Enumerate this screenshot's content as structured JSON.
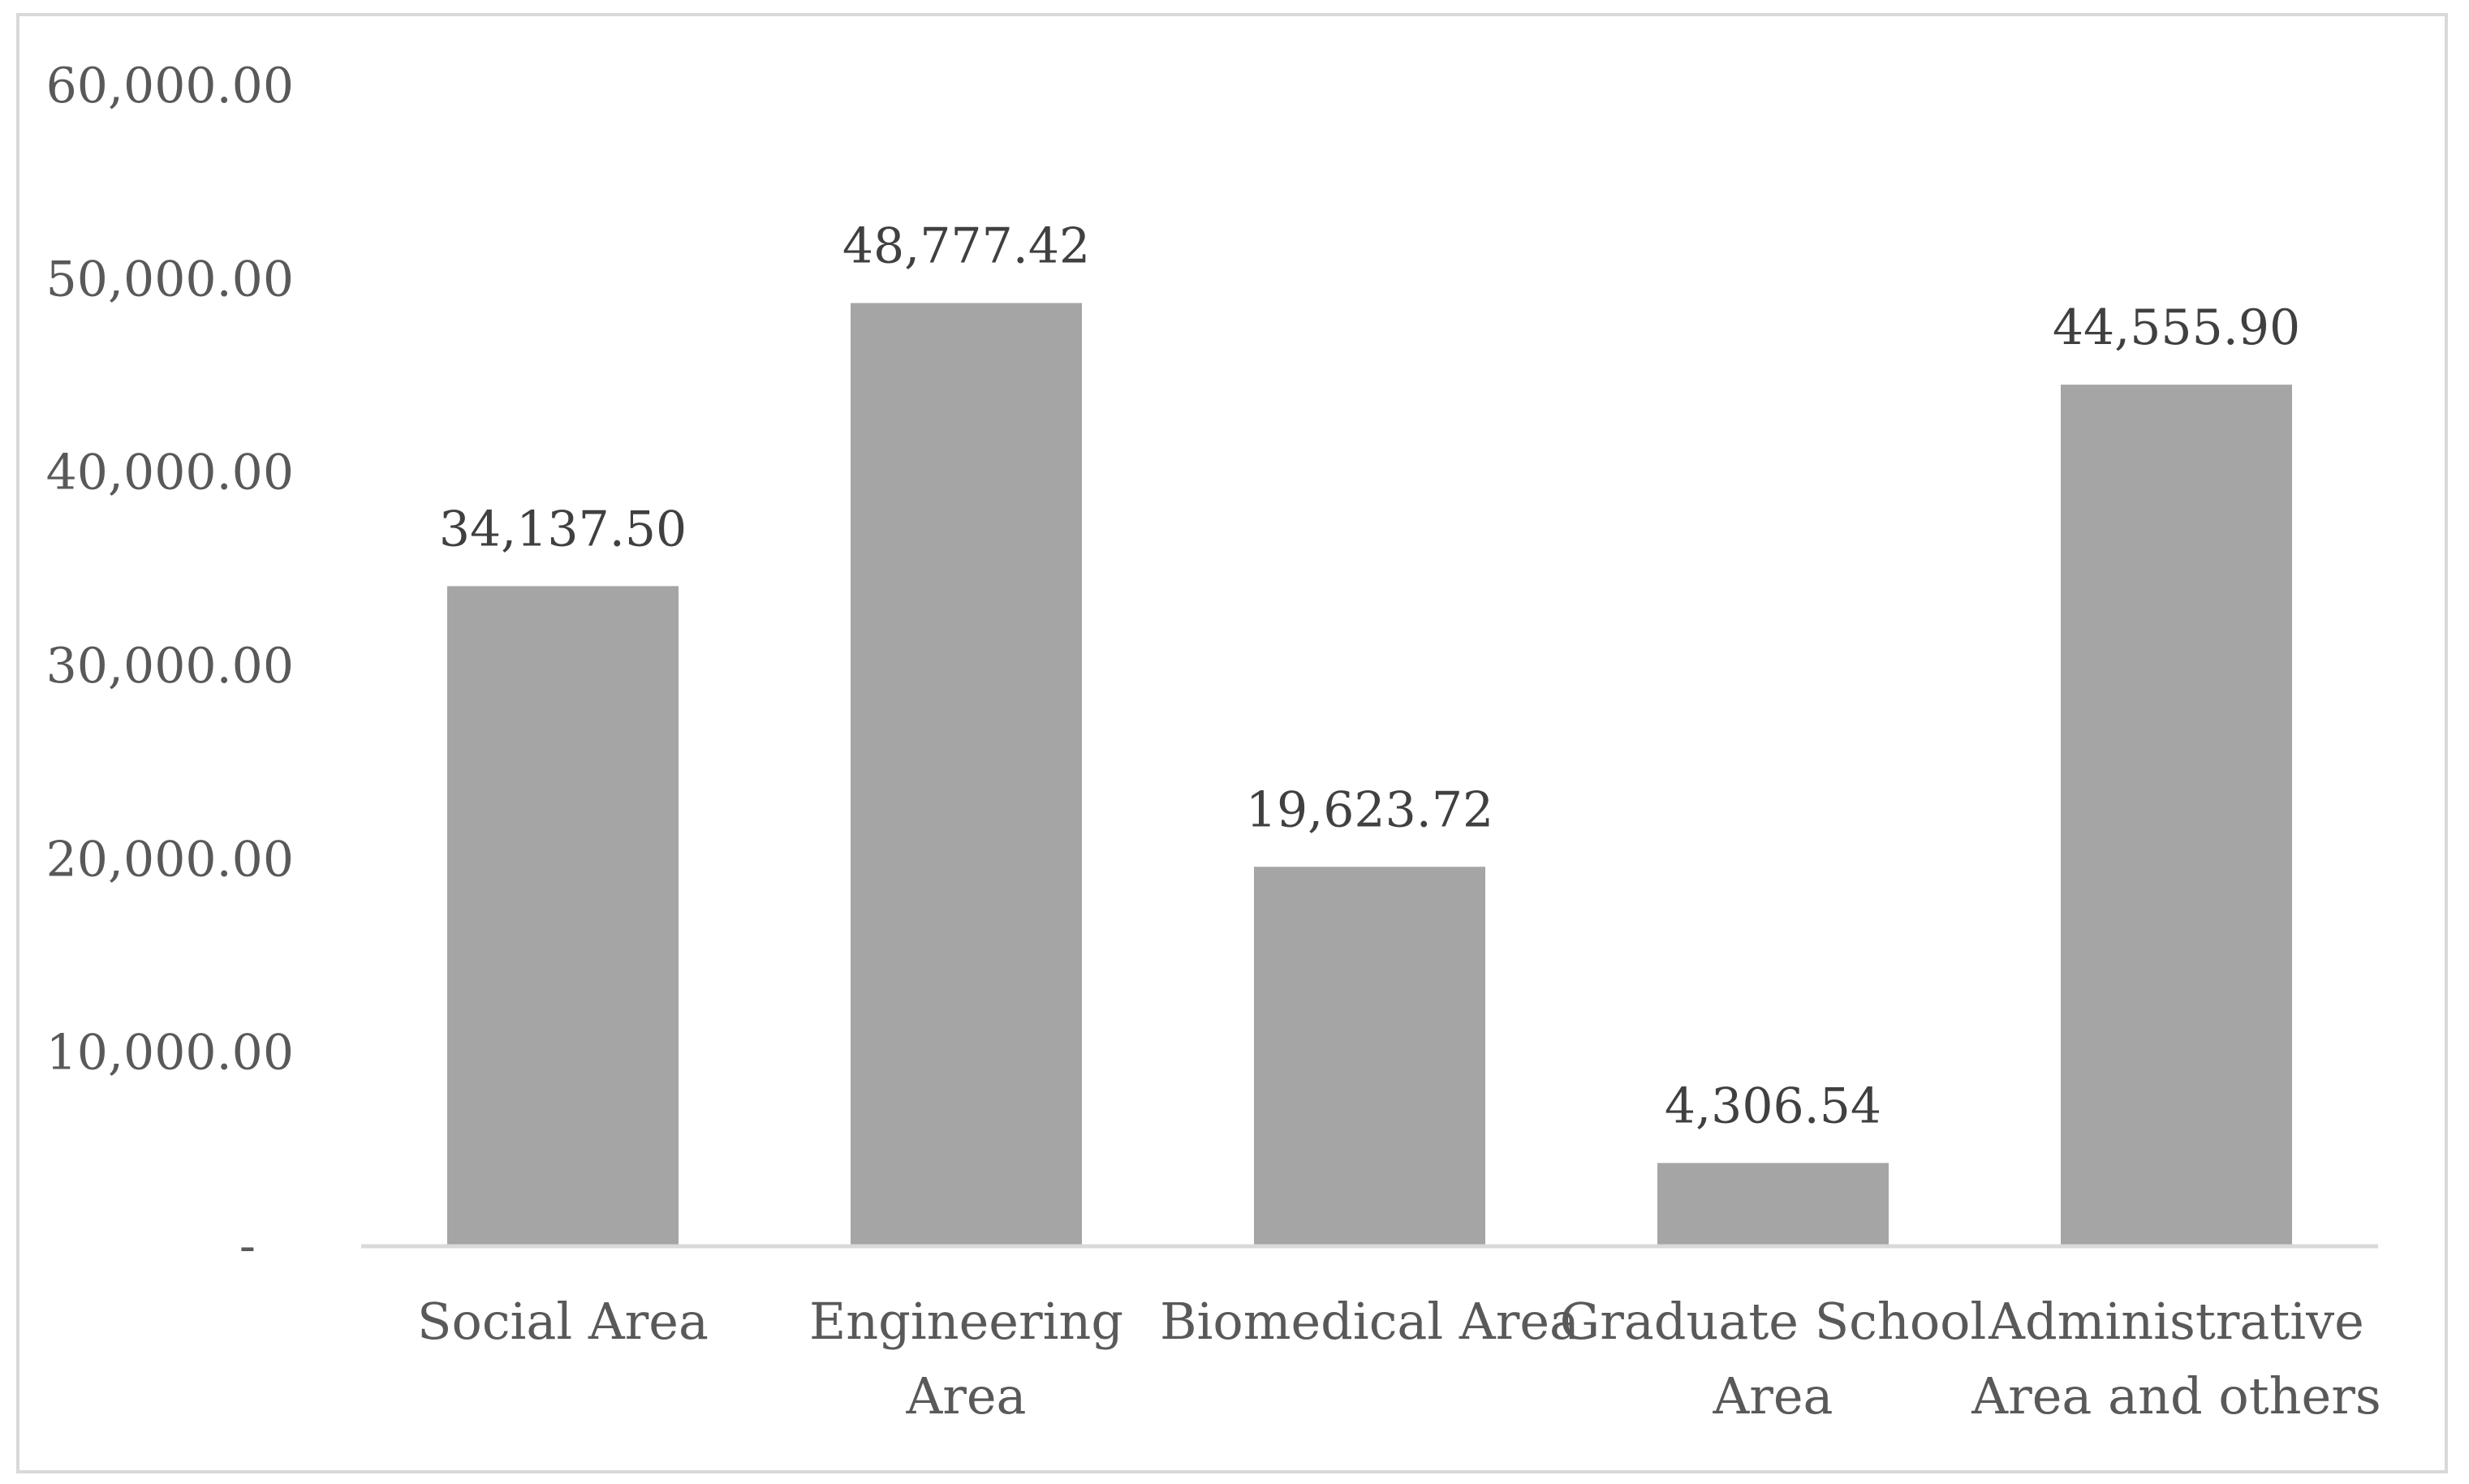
{
  "chart_data": {
    "type": "bar",
    "title": "",
    "xlabel": "",
    "ylabel": "",
    "categories": [
      "Social Area",
      "Engineering Area",
      "Biomedical Area",
      "Graduate School Area",
      "Administrative Area and others"
    ],
    "category_lines": [
      [
        "Social Area"
      ],
      [
        "Engineering",
        "Area"
      ],
      [
        "Biomedical Area"
      ],
      [
        "Graduate School",
        "Area"
      ],
      [
        "Administrative",
        "Area and others"
      ]
    ],
    "values": [
      34137.5,
      48777.42,
      19623.72,
      4306.54,
      44555.9
    ],
    "data_labels": [
      "34,137.50",
      "48,777.42",
      "19,623.72",
      "4,306.54",
      "44,555.90"
    ],
    "ylim": [
      0,
      60000
    ],
    "yticks": [
      0,
      10000,
      20000,
      30000,
      40000,
      50000,
      60000
    ],
    "ytick_labels": [
      "-",
      "10,000.00",
      "20,000.00",
      "30,000.00",
      "40,000.00",
      "50,000.00",
      "60,000.00"
    ],
    "grid": false,
    "legend": "none",
    "colors": {
      "bar": "#a5a5a5",
      "axis": "#d9d9d9",
      "frame": "#d9d9d9"
    }
  }
}
